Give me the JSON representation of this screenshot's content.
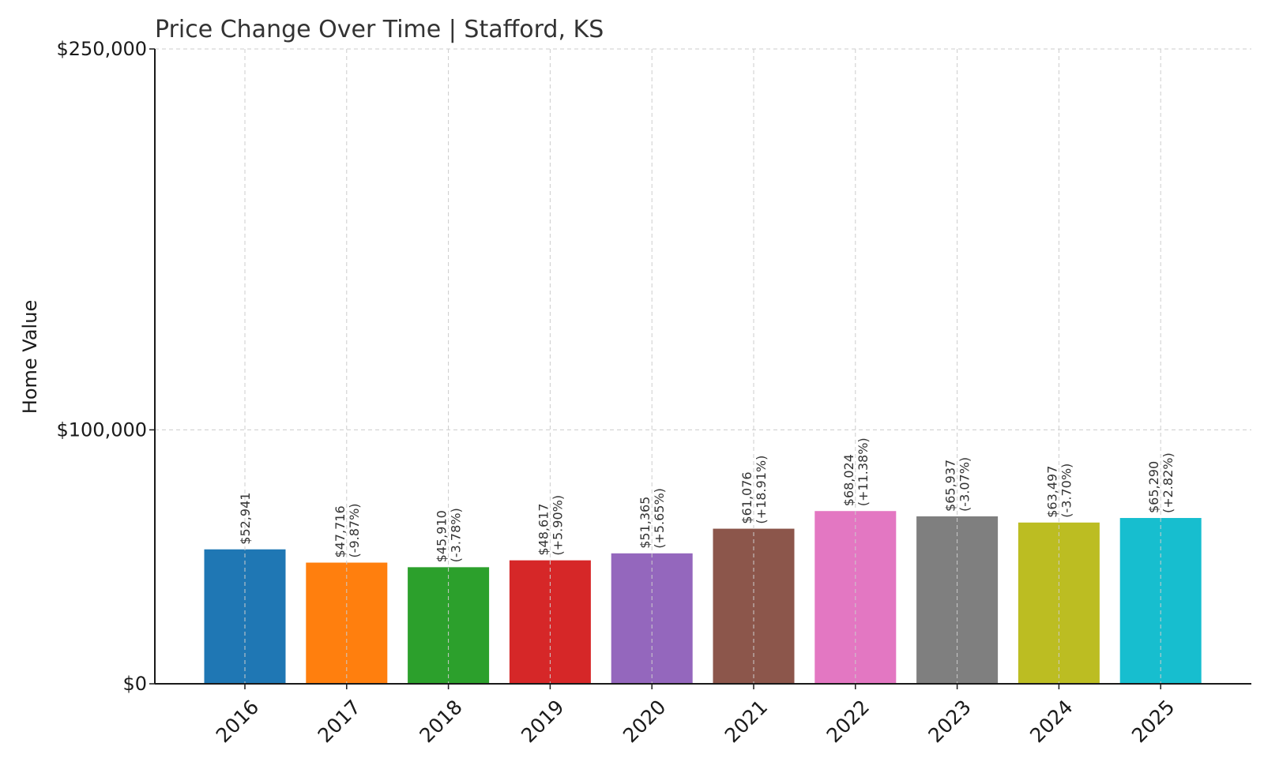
{
  "chart_data": {
    "type": "bar",
    "title": "Price Change Over Time | Stafford, KS",
    "xlabel": "",
    "ylabel": "Home Value",
    "categories": [
      "2016",
      "2017",
      "2018",
      "2019",
      "2020",
      "2021",
      "2022",
      "2023",
      "2024",
      "2025"
    ],
    "values": [
      52941,
      47716,
      45910,
      48617,
      51365,
      61076,
      68024,
      65937,
      63497,
      65290
    ],
    "value_labels": [
      "$52,941",
      "$47,716",
      "$45,910",
      "$48,617",
      "$51,365",
      "$61,076",
      "$68,024",
      "$65,937",
      "$63,497",
      "$65,290"
    ],
    "change_labels": [
      "",
      "(-9.87%)",
      "(-3.78%)",
      "(+5.90%)",
      "(+5.65%)",
      "(+18.91%)",
      "(+11.38%)",
      "(-3.07%)",
      "(-3.70%)",
      "(+2.82%)"
    ],
    "colors": [
      "#1f77b4",
      "#ff7f0e",
      "#2ca02c",
      "#d62728",
      "#9467bd",
      "#8c564b",
      "#e377c2",
      "#7f7f7f",
      "#bcbd22",
      "#17becf"
    ],
    "ylim": [
      0,
      250000
    ],
    "yticks": [
      0,
      100000,
      250000
    ],
    "ytick_labels": [
      "$0",
      "$100,000",
      "$250,000"
    ],
    "grid": true
  }
}
